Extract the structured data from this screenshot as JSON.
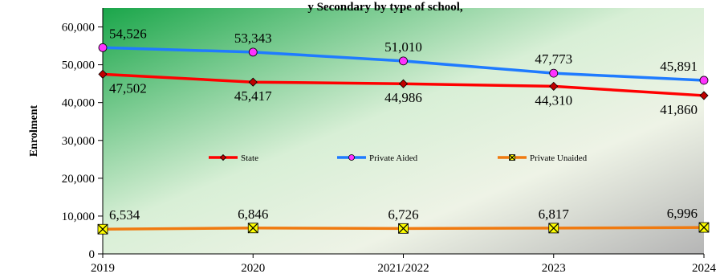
{
  "chart_data": {
    "type": "line",
    "title": "y Secondary by type of school, ",
    "ylabel": "Enrolment",
    "xlabel": "",
    "categories": [
      "2019",
      "2020",
      "2021/2022",
      "2023",
      "2024"
    ],
    "ylim": [
      0,
      65000
    ],
    "yticks": [
      0,
      10000,
      20000,
      30000,
      40000,
      50000,
      60000
    ],
    "ytick_labels": [
      "0",
      "10,000",
      "20,000",
      "30,000",
      "40,000",
      "50,000",
      "60,000"
    ],
    "grid": false,
    "legend_position": "middle",
    "series": [
      {
        "name": "State",
        "color": "#ff0000",
        "marker": "diamond",
        "marker_color": "#c00000",
        "values": [
          47502,
          45417,
          44986,
          44310,
          41860
        ],
        "labels": [
          "47,502",
          "45,417",
          "44,986",
          "44,310",
          "41,860"
        ],
        "label_pos": "below"
      },
      {
        "name": "Private Aided",
        "color": "#1f7bff",
        "marker": "circle",
        "marker_color": "#ff33ff",
        "values": [
          54526,
          53343,
          51010,
          47773,
          45891
        ],
        "labels": [
          "54,526",
          "53,343",
          "51,010",
          "47,773",
          "45,891"
        ],
        "label_pos": "above"
      },
      {
        "name": "Private Unaided",
        "color": "#f07a10",
        "marker": "x-square",
        "marker_color": "#ffff00",
        "values": [
          6534,
          6846,
          6726,
          6817,
          6996
        ],
        "labels": [
          "6,534",
          "6,846",
          "6,726",
          "6,817",
          "6,996"
        ],
        "label_pos": "above"
      }
    ]
  }
}
